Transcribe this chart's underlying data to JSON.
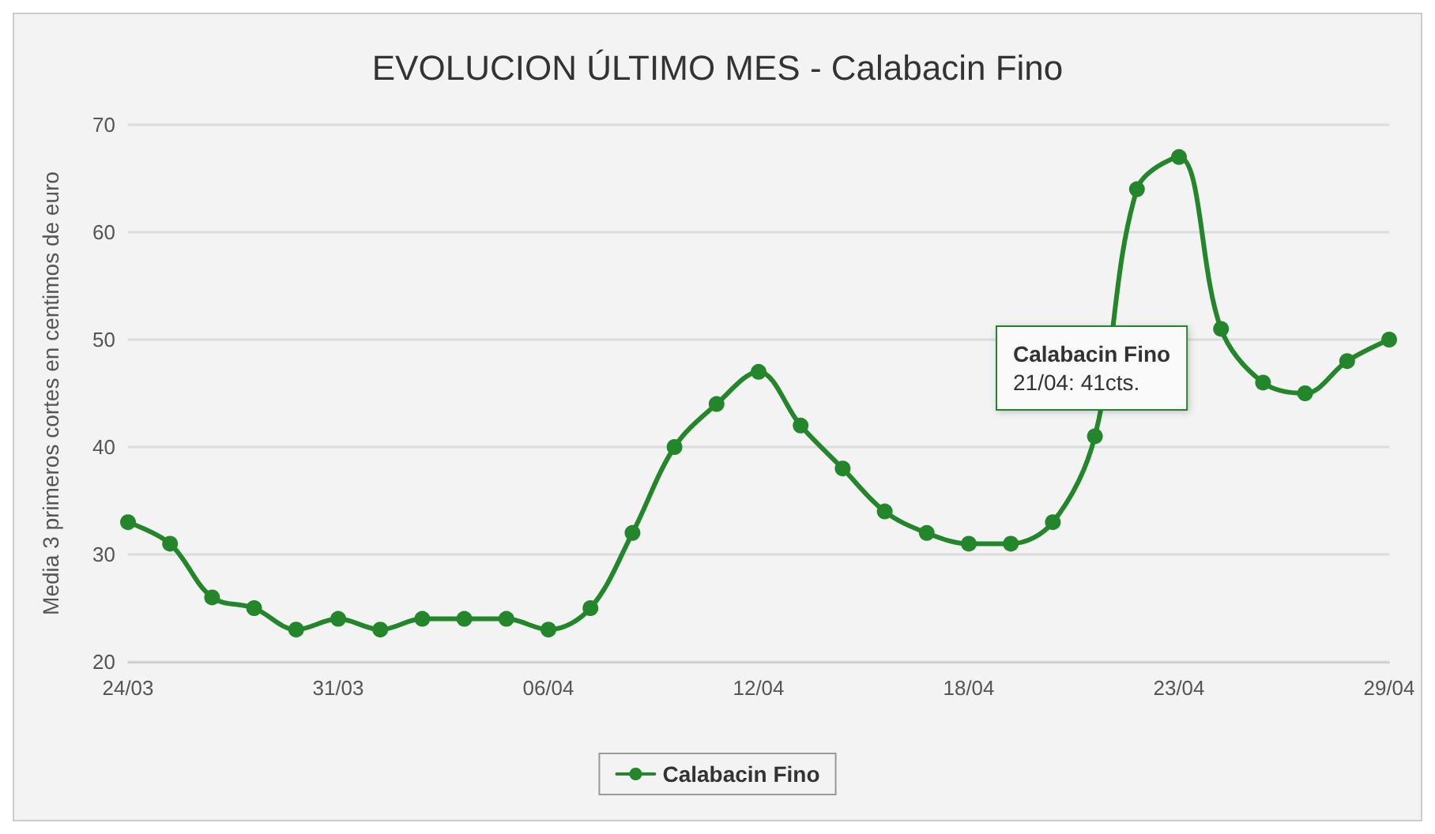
{
  "chart_data": {
    "type": "line",
    "title": "EVOLUCION ÚLTIMO MES - Calabacin Fino",
    "ylabel": "Media 3 primeros cortes en centimos de euro",
    "categories": [
      "24/03",
      null,
      null,
      null,
      null,
      "31/03",
      null,
      null,
      null,
      null,
      "06/04",
      null,
      null,
      null,
      null,
      "12/04",
      null,
      null,
      null,
      null,
      "18/04",
      null,
      null,
      null,
      null,
      "23/04",
      null,
      null,
      null,
      null,
      "29/04"
    ],
    "series": [
      {
        "name": "Calabacin Fino",
        "color": "#23862a",
        "values": [
          33,
          31,
          26,
          25,
          23,
          24,
          23,
          24,
          24,
          24,
          23,
          25,
          32,
          40,
          44,
          47,
          42,
          38,
          34,
          32,
          31,
          31,
          33,
          41,
          64,
          67,
          51,
          46,
          45,
          48,
          50
        ]
      }
    ],
    "ylim": [
      20,
      70
    ],
    "yticks": [
      20,
      30,
      40,
      50,
      60,
      70
    ],
    "grid": "y",
    "legend": "bottom",
    "marker": "circle",
    "line_style": "solid",
    "annotations": [
      "Calabacin Fino\n21/04: 41cts."
    ]
  }
}
